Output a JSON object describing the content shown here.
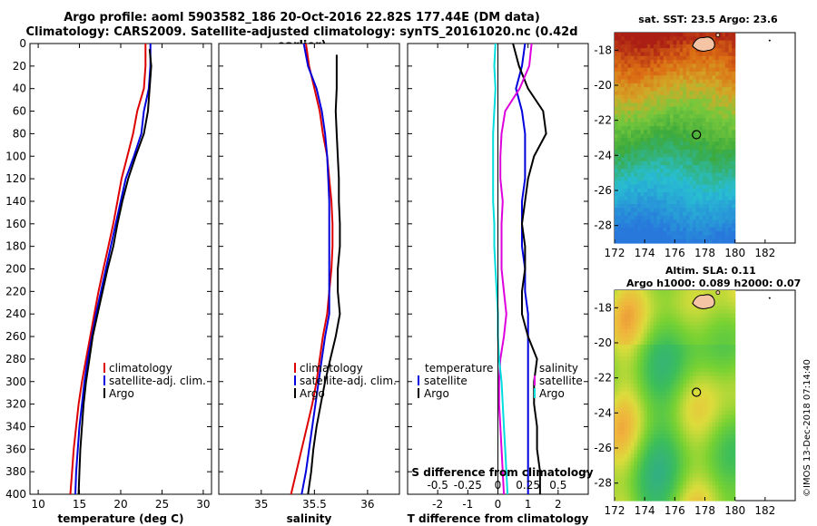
{
  "header": {
    "line1": "Argo profile: aoml 5903582_186 20-Oct-2016 22.82S 177.44E (DM data)",
    "line2": "Climatology: CARS2009. Satellite-adjusted climatology: synTS_20161020.nc (0.42d earlier)"
  },
  "stamp": "©IMOS 13-Dec-2018 07:14:40",
  "colors": {
    "clim": "#dd0000",
    "sat": "#0000dd",
    "argo": "#000000",
    "tdiff": "#dd00dd",
    "sdiff": "#00dddd"
  },
  "chart_data": [
    {
      "type": "line",
      "id": "temp",
      "xlabel": "temperature (deg C)",
      "ylabel": "",
      "xlim": [
        9,
        31
      ],
      "ylim": [
        0,
        400
      ],
      "xticks": [
        10,
        15,
        20,
        25,
        30
      ],
      "yticks": [
        0,
        20,
        40,
        60,
        80,
        100,
        120,
        140,
        160,
        180,
        200,
        220,
        240,
        260,
        280,
        300,
        320,
        340,
        360,
        380,
        400
      ],
      "legend": {
        "position": "center-right",
        "entries": [
          "climatology",
          "satellite-adj. clim.",
          "Argo"
        ]
      },
      "series": [
        {
          "name": "climatology",
          "color": "clim",
          "x": [
            23.0,
            23.0,
            22.8,
            22.0,
            21.5,
            20.8,
            20.1,
            19.6,
            19.1,
            18.5,
            17.9,
            17.3,
            16.8,
            16.3,
            15.8,
            15.3,
            14.9,
            14.6,
            14.3,
            14.1,
            13.9
          ],
          "y": [
            0,
            20,
            40,
            60,
            80,
            100,
            120,
            140,
            160,
            180,
            200,
            220,
            240,
            260,
            280,
            300,
            320,
            340,
            360,
            380,
            400
          ]
        },
        {
          "name": "satellite-adj. clim.",
          "color": "sat",
          "x": [
            23.6,
            23.6,
            23.4,
            22.8,
            22.5,
            21.6,
            20.6,
            20.0,
            19.4,
            18.8,
            18.2,
            17.6,
            17.0,
            16.5,
            16.0,
            15.6,
            15.3,
            15.0,
            14.8,
            14.6,
            14.5
          ],
          "y": [
            0,
            20,
            40,
            60,
            80,
            100,
            120,
            140,
            160,
            180,
            200,
            220,
            240,
            260,
            280,
            300,
            320,
            340,
            360,
            380,
            400
          ]
        },
        {
          "name": "Argo",
          "color": "argo",
          "x": [
            23.5,
            23.7,
            23.5,
            23.3,
            22.8,
            21.8,
            20.9,
            20.2,
            19.6,
            19.1,
            18.4,
            17.8,
            17.2,
            16.6,
            16.2,
            15.8,
            15.5,
            15.3,
            15.1,
            15.0,
            14.9
          ],
          "y": [
            5,
            20,
            40,
            60,
            80,
            100,
            120,
            140,
            160,
            180,
            200,
            220,
            240,
            260,
            280,
            300,
            320,
            340,
            360,
            380,
            400
          ]
        }
      ]
    },
    {
      "type": "line",
      "id": "sal",
      "xlabel": "salinity",
      "xlim": [
        34.6,
        36.3
      ],
      "ylim": [
        0,
        400
      ],
      "xticks": [
        35,
        35.5,
        36
      ],
      "xticklabels": [
        "35",
        "35.5",
        "36"
      ],
      "legend": {
        "position": "center-right",
        "entries": [
          "climatology",
          "satellite-adj. clim.",
          "Argo"
        ]
      },
      "series": [
        {
          "name": "climatology",
          "color": "clim",
          "x": [
            35.42,
            35.45,
            35.5,
            35.55,
            35.58,
            35.62,
            35.64,
            35.66,
            35.67,
            35.67,
            35.66,
            35.64,
            35.62,
            35.58,
            35.55,
            35.52,
            35.48,
            35.43,
            35.38,
            35.33,
            35.28
          ],
          "y": [
            0,
            20,
            40,
            60,
            80,
            100,
            120,
            140,
            160,
            180,
            200,
            220,
            240,
            260,
            280,
            300,
            320,
            340,
            360,
            380,
            400
          ]
        },
        {
          "name": "satellite-adj. clim.",
          "color": "sat",
          "x": [
            35.4,
            35.44,
            35.52,
            35.57,
            35.6,
            35.62,
            35.63,
            35.64,
            35.64,
            35.64,
            35.64,
            35.64,
            35.64,
            35.6,
            35.57,
            35.54,
            35.51,
            35.48,
            35.45,
            35.42,
            35.38
          ],
          "y": [
            0,
            20,
            40,
            60,
            80,
            100,
            120,
            140,
            160,
            180,
            200,
            220,
            240,
            260,
            280,
            300,
            320,
            340,
            360,
            380,
            400
          ]
        },
        {
          "name": "Argo",
          "color": "argo",
          "x": [
            35.71,
            35.71,
            35.71,
            35.7,
            35.71,
            35.72,
            35.73,
            35.73,
            35.74,
            35.74,
            35.72,
            35.72,
            35.74,
            35.7,
            35.65,
            35.6,
            35.56,
            35.52,
            35.49,
            35.47,
            35.44
          ],
          "y": [
            10,
            20,
            40,
            60,
            80,
            100,
            120,
            140,
            160,
            180,
            200,
            220,
            240,
            260,
            280,
            300,
            320,
            340,
            360,
            380,
            400
          ]
        }
      ]
    },
    {
      "type": "line",
      "id": "diff",
      "xlabel": "T difference from climatology",
      "xlabel_top": "S difference from climatology",
      "xlim": [
        -3,
        3
      ],
      "ylim": [
        0,
        400
      ],
      "xticks": [
        -2,
        -1,
        0,
        1,
        2
      ],
      "top_ticks": [
        -0.5,
        -0.25,
        0,
        0.25,
        0.5
      ],
      "top_ticklabels": [
        "-0.5",
        "-0.25",
        "0",
        "0.25",
        "0.5"
      ],
      "top_xlim": [
        -0.75,
        0.75
      ],
      "legend_left": {
        "title": "temperature",
        "entries": [
          "satellite",
          "Argo"
        ]
      },
      "legend_right": {
        "title": "salinity",
        "entries": [
          "satellite",
          "Argo"
        ]
      },
      "series": [
        {
          "name": "T satellite",
          "color": "sat",
          "axis": "T",
          "x": [
            0.9,
            0.8,
            0.6,
            0.8,
            0.9,
            0.9,
            0.9,
            0.8,
            0.8,
            0.8,
            0.9,
            0.9,
            1.0,
            1.0,
            1.0,
            1.0,
            1.0,
            1.0,
            1.0,
            1.0,
            1.0
          ],
          "y": [
            0,
            20,
            40,
            60,
            80,
            100,
            120,
            140,
            160,
            180,
            200,
            220,
            240,
            260,
            280,
            300,
            320,
            340,
            360,
            380,
            400
          ]
        },
        {
          "name": "T Argo",
          "color": "argo",
          "axis": "T",
          "x": [
            0.5,
            0.7,
            1.0,
            1.5,
            1.6,
            1.2,
            1.0,
            0.9,
            0.8,
            0.9,
            0.9,
            0.8,
            0.8,
            1.0,
            1.3,
            1.2,
            1.2,
            1.3,
            1.3,
            1.4,
            1.4
          ],
          "y": [
            0,
            20,
            40,
            60,
            80,
            100,
            120,
            140,
            160,
            180,
            200,
            220,
            240,
            260,
            280,
            300,
            320,
            340,
            360,
            380,
            400
          ]
        },
        {
          "name": "S satellite",
          "color": "tdiff",
          "axis": "S",
          "x": [
            0.28,
            0.26,
            0.18,
            0.06,
            0.03,
            0.02,
            0.02,
            0.04,
            0.03,
            0.03,
            0.03,
            0.05,
            0.07,
            0.05,
            0.02,
            0.01,
            0.01,
            0.02,
            0.03,
            0.04,
            0.05
          ],
          "y": [
            0,
            20,
            40,
            60,
            80,
            100,
            120,
            140,
            160,
            180,
            200,
            220,
            240,
            260,
            280,
            300,
            320,
            340,
            360,
            380,
            400
          ]
        },
        {
          "name": "S Argo",
          "color": "sdiff",
          "axis": "S",
          "x": [
            -0.02,
            -0.03,
            -0.02,
            -0.03,
            -0.04,
            -0.04,
            -0.04,
            -0.04,
            -0.03,
            -0.03,
            -0.02,
            -0.01,
            0.0,
            0.0,
            0.01,
            0.03,
            0.04,
            0.05,
            0.06,
            0.07,
            0.08
          ],
          "y": [
            0,
            20,
            40,
            60,
            80,
            100,
            120,
            140,
            160,
            180,
            200,
            220,
            240,
            260,
            280,
            300,
            320,
            340,
            360,
            380,
            400
          ]
        }
      ]
    },
    {
      "type": "heatmap",
      "id": "sst",
      "title": "sat. SST: 23.5 Argo: 23.6",
      "xlim": [
        172,
        184
      ],
      "ylim": [
        -29,
        -17
      ],
      "xticks": [
        172,
        174,
        176,
        178,
        180,
        182
      ],
      "yticks": [
        -18,
        -20,
        -22,
        -24,
        -26,
        -28
      ],
      "data_extent_lon": [
        172,
        180
      ],
      "marker": {
        "lon": 177.44,
        "lat": -22.82
      }
    },
    {
      "type": "heatmap",
      "id": "sla",
      "title1": "Altim. SLA: 0.11",
      "title2": "Argo h1000: 0.089 h2000: 0.07",
      "xlim": [
        172,
        184
      ],
      "ylim": [
        -29,
        -17
      ],
      "xticks": [
        172,
        174,
        176,
        178,
        180,
        182
      ],
      "yticks": [
        -18,
        -20,
        -22,
        -24,
        -26,
        -28
      ],
      "data_extent_lon": [
        172,
        180
      ],
      "marker": {
        "lon": 177.44,
        "lat": -22.82
      }
    }
  ]
}
